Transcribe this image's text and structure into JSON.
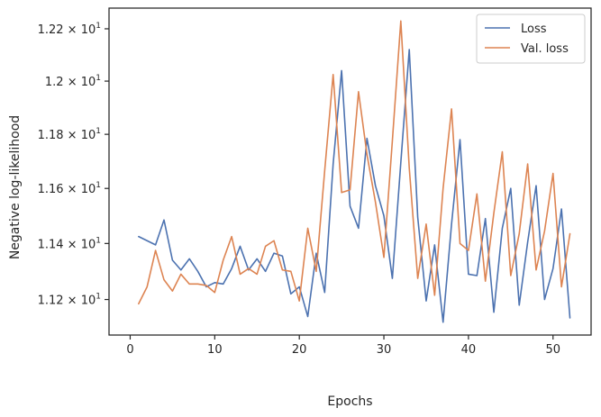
{
  "chart_data": {
    "type": "line",
    "xlabel": "Epochs",
    "ylabel": "Negative log-likelihood",
    "xlim": [
      -2.5,
      54.5
    ],
    "ylim": [
      11.075,
      12.28
    ],
    "yscale": "log",
    "x_ticks": [
      0,
      10,
      20,
      30,
      40,
      50
    ],
    "x_tick_labels": [
      "0",
      "10",
      "20",
      "30",
      "40",
      "50"
    ],
    "y_ticks": [
      11.2,
      11.4,
      11.6,
      11.8,
      12.0,
      12.2
    ],
    "y_tick_labels": [
      {
        "base": "1.12 × 10",
        "exp": "1"
      },
      {
        "base": "1.14 × 10",
        "exp": "1"
      },
      {
        "base": "1.16 × 10",
        "exp": "1"
      },
      {
        "base": "1.18 × 10",
        "exp": "1"
      },
      {
        "base": "1.2 × 10",
        "exp": "1"
      },
      {
        "base": "1.22 × 10",
        "exp": "1"
      }
    ],
    "grid": false,
    "legend_position": "top-right",
    "x": [
      1,
      2,
      3,
      4,
      5,
      6,
      7,
      8,
      9,
      10,
      11,
      12,
      13,
      14,
      15,
      16,
      17,
      18,
      19,
      20,
      21,
      22,
      23,
      24,
      25,
      26,
      27,
      28,
      29,
      30,
      31,
      32,
      33,
      34,
      35,
      36,
      37,
      38,
      39,
      40,
      41,
      42,
      43,
      44,
      45,
      46,
      47,
      48,
      49,
      50,
      51,
      52
    ],
    "series": [
      {
        "name": "Loss",
        "color": "#4c72b0",
        "values": [
          11.425,
          11.41,
          11.395,
          11.485,
          11.34,
          11.305,
          11.345,
          11.3,
          11.245,
          11.26,
          11.255,
          11.31,
          11.39,
          11.305,
          11.345,
          11.3,
          11.365,
          11.355,
          11.22,
          11.245,
          11.14,
          11.365,
          11.225,
          11.69,
          12.04,
          11.535,
          11.455,
          11.785,
          11.61,
          11.5,
          11.275,
          11.695,
          12.12,
          11.495,
          11.195,
          11.395,
          11.12,
          11.47,
          11.78,
          11.29,
          11.285,
          11.49,
          11.155,
          11.455,
          11.6,
          11.18,
          11.405,
          11.61,
          11.2,
          11.31,
          11.525,
          11.135
        ]
      },
      {
        "name": "Val. loss",
        "color": "#dd8452",
        "values": [
          11.185,
          11.245,
          11.375,
          11.27,
          11.23,
          11.29,
          11.255,
          11.255,
          11.25,
          11.225,
          11.34,
          11.425,
          11.29,
          11.31,
          11.29,
          11.39,
          11.41,
          11.305,
          11.3,
          11.195,
          11.455,
          11.3,
          11.665,
          12.025,
          11.585,
          11.595,
          11.96,
          11.725,
          11.55,
          11.35,
          11.775,
          12.23,
          11.675,
          11.275,
          11.47,
          11.215,
          11.6,
          11.895,
          11.4,
          11.375,
          11.58,
          11.265,
          11.51,
          11.735,
          11.285,
          11.435,
          11.69,
          11.305,
          11.445,
          11.655,
          11.245,
          11.435
        ]
      }
    ]
  }
}
